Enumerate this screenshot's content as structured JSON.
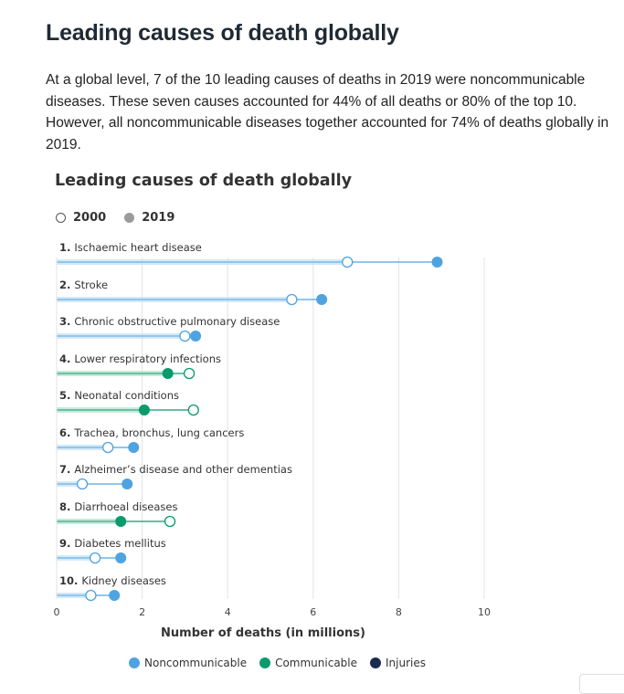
{
  "heading": "Leading causes of death globally",
  "intro": "At a global level, 7 of the 10 leading causes of deaths in 2019 were noncommunicable diseases. These seven causes accounted for 44% of all deaths or 80% of the top 10. However, all noncommunicable diseases together accounted for 74% of deaths globally in 2019.",
  "chart_data": {
    "type": "dumbbell",
    "title": "Leading causes of death globally",
    "xlabel": "Number of deaths (in millions)",
    "xlim": [
      0,
      10
    ],
    "xticks": [
      0,
      2,
      4,
      6,
      8,
      10
    ],
    "grid": true,
    "legend_years": [
      {
        "label": "2000",
        "marker": "open"
      },
      {
        "label": "2019",
        "marker": "filled"
      }
    ],
    "legend_groups": [
      {
        "label": "Noncommunicable",
        "color": "#4ea3e0"
      },
      {
        "label": "Communicable",
        "color": "#0a9a6b"
      },
      {
        "label": "Injuries",
        "color": "#1b2a4e"
      }
    ],
    "categories": [
      {
        "label": "1. Ischaemic heart disease",
        "group": "Noncommunicable",
        "y2000": 6.8,
        "y2019": 8.9
      },
      {
        "label": "2. Stroke",
        "group": "Noncommunicable",
        "y2000": 5.5,
        "y2019": 6.2
      },
      {
        "label": "3. Chronic obstructive pulmonary disease",
        "group": "Noncommunicable",
        "y2000": 3.0,
        "y2019": 3.25
      },
      {
        "label": "4. Lower respiratory infections",
        "group": "Communicable",
        "y2000": 3.1,
        "y2019": 2.6
      },
      {
        "label": "5. Neonatal conditions",
        "group": "Communicable",
        "y2000": 3.2,
        "y2019": 2.05
      },
      {
        "label": "6. Trachea, bronchus, lung cancers",
        "group": "Noncommunicable",
        "y2000": 1.2,
        "y2019": 1.8
      },
      {
        "label": "7. Alzheimer’s disease and other dementias",
        "group": "Noncommunicable",
        "y2000": 0.6,
        "y2019": 1.65
      },
      {
        "label": "8. Diarrhoeal diseases",
        "group": "Communicable",
        "y2000": 2.65,
        "y2019": 1.5
      },
      {
        "label": "9. Diabetes mellitus",
        "group": "Noncommunicable",
        "y2000": 0.9,
        "y2019": 1.5
      },
      {
        "label": "10. Kidney diseases",
        "group": "Noncommunicable",
        "y2000": 0.8,
        "y2019": 1.35
      }
    ]
  }
}
